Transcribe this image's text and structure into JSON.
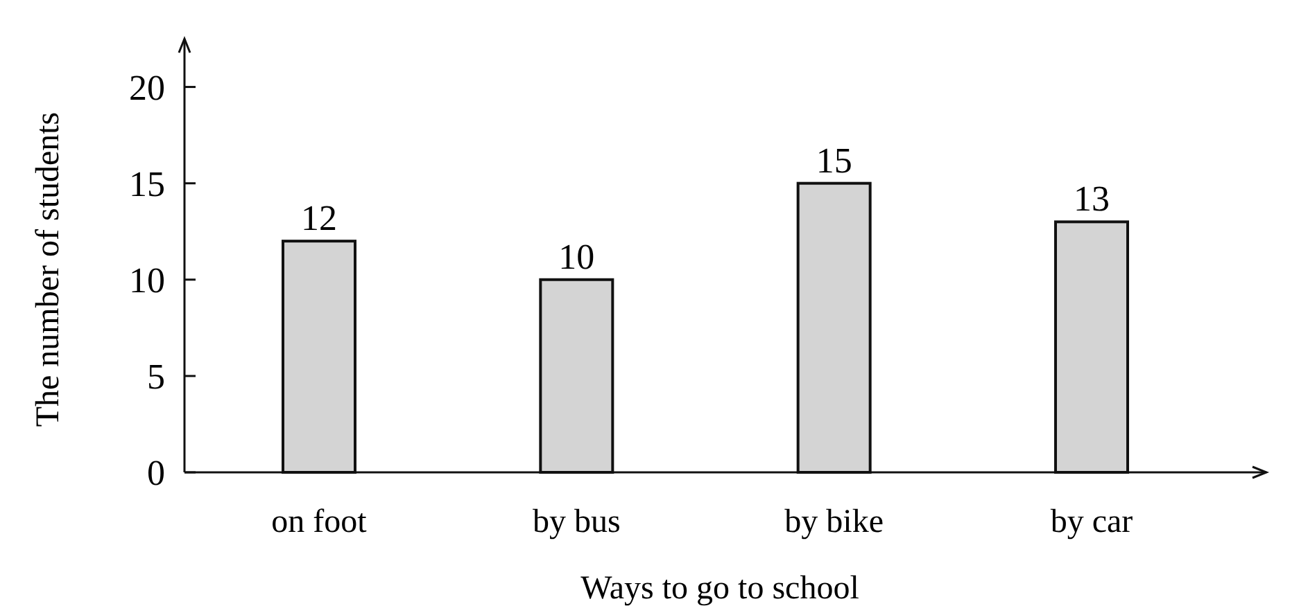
{
  "chart_data": {
    "type": "bar",
    "xlabel": "Ways to go to school",
    "ylabel": "The number of students",
    "categories": [
      "on foot",
      "by bus",
      "by bike",
      "by car"
    ],
    "values": [
      12,
      10,
      15,
      13
    ],
    "color": "#d4d4d4",
    "ylim": [
      0,
      22.5
    ],
    "yticks": [
      0,
      5,
      10,
      15,
      20
    ],
    "data_labels": true
  }
}
